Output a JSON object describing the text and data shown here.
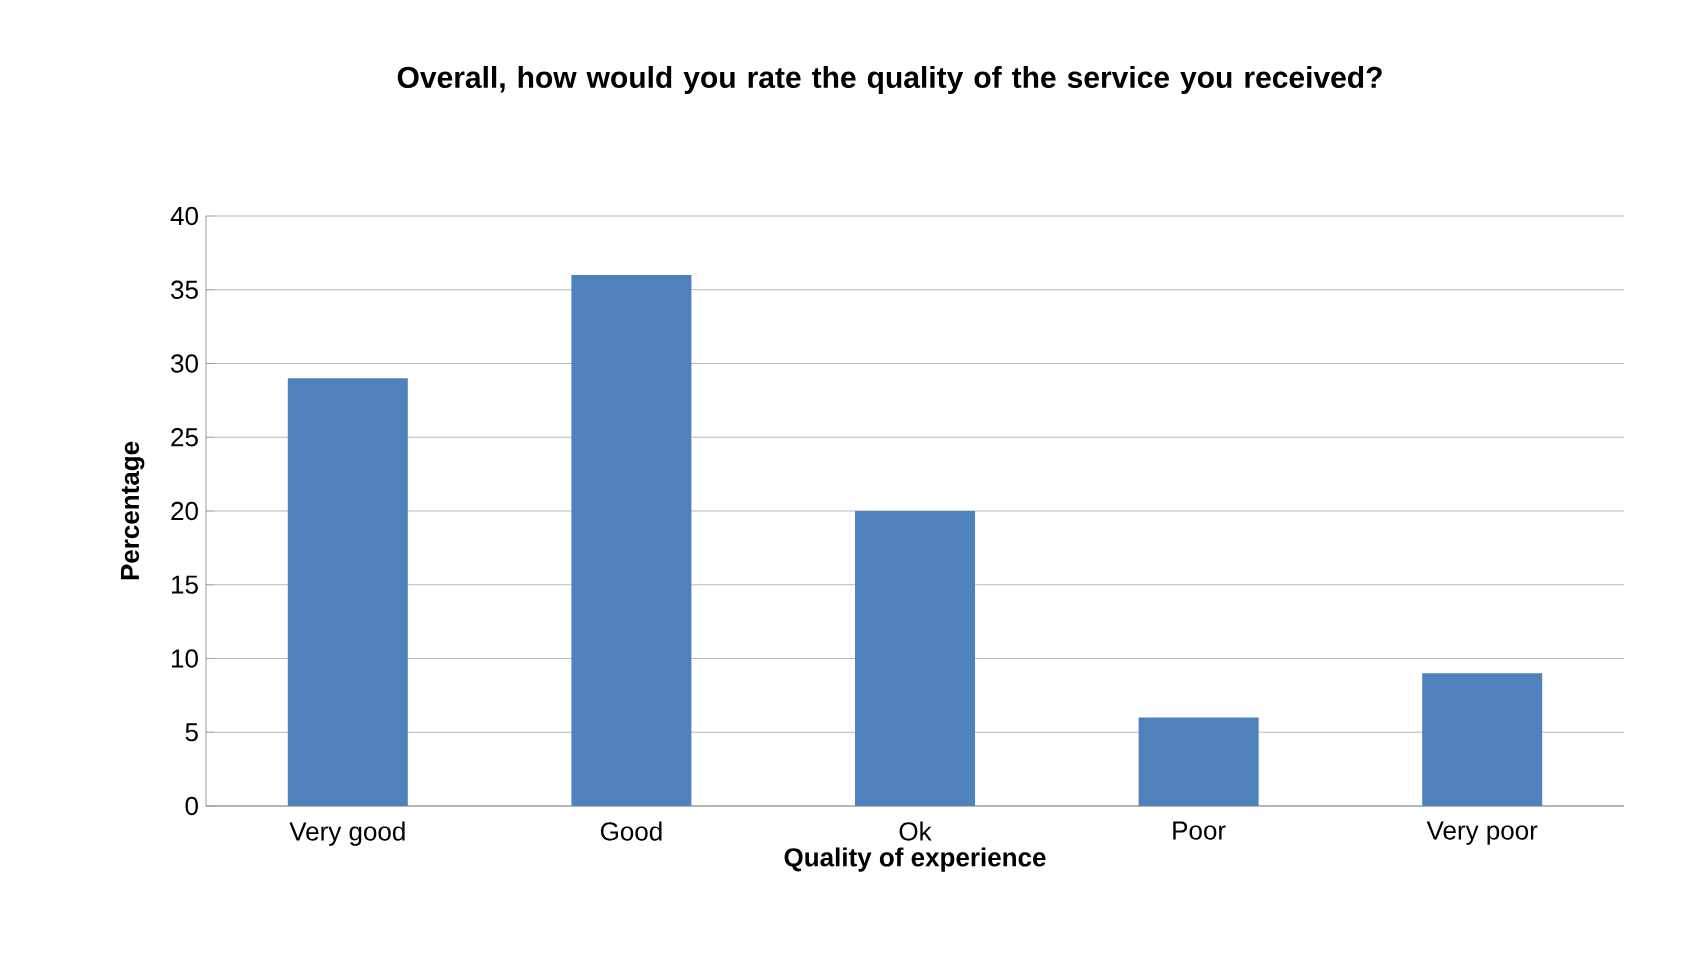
{
  "chart_data": {
    "type": "bar",
    "title": "Overall, how would you rate the quality of the service you received?",
    "xlabel": "Quality of experience",
    "ylabel": "Percentage",
    "categories": [
      "Very good",
      "Good",
      "Ok",
      "Poor",
      "Very poor"
    ],
    "values": [
      29,
      36,
      20,
      6,
      9
    ],
    "color": "#4f81bd",
    "ylim": [
      0,
      40
    ],
    "yticks": [
      0,
      5,
      10,
      15,
      20,
      25,
      30,
      35,
      40
    ],
    "grid": "y"
  }
}
